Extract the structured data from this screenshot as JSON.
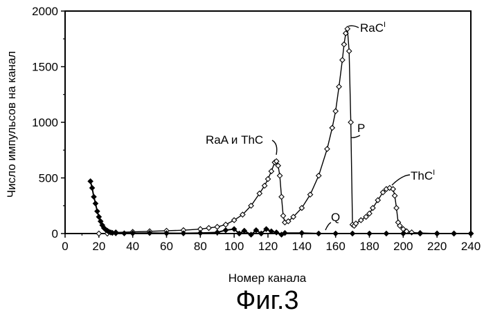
{
  "chart_data": {
    "type": "scatter",
    "xlabel": "Номер канала",
    "ylabel": "Число импульсов на канал",
    "caption": "Фиг.3",
    "xlim": [
      0,
      240
    ],
    "ylim": [
      0,
      2000
    ],
    "xticks": [
      "0",
      "20",
      "40",
      "60",
      "80",
      "100",
      "120",
      "140",
      "160",
      "180",
      "200",
      "220",
      "240"
    ],
    "yticks": [
      "0",
      "500",
      "1000",
      "1500",
      "2000"
    ],
    "grid": false,
    "annotations": {
      "raa_thc": "RaA и ThC",
      "rac": "RaC",
      "rac_sup": "I",
      "p": "P",
      "thc1": "ThC",
      "thc1_sup": "I",
      "q": "Q"
    },
    "series": [
      {
        "label_ref": "P",
        "marker": "open-diamond",
        "x": [
          20,
          25,
          30,
          40,
          50,
          60,
          70,
          80,
          85,
          90,
          95,
          100,
          105,
          110,
          115,
          118,
          120,
          122,
          124,
          125,
          126,
          127,
          128,
          129,
          130,
          132,
          135,
          140,
          145,
          150,
          155,
          158,
          160,
          162,
          164,
          165,
          166,
          167,
          168,
          169,
          170,
          171,
          172,
          175,
          178,
          180,
          182,
          185,
          188,
          190,
          192,
          194,
          195,
          196,
          197,
          198,
          200,
          202,
          205,
          210,
          220,
          230,
          240
        ],
        "y": [
          0,
          0,
          10,
          15,
          20,
          25,
          30,
          40,
          50,
          60,
          80,
          120,
          170,
          250,
          360,
          430,
          490,
          560,
          640,
          650,
          610,
          520,
          330,
          160,
          100,
          110,
          150,
          230,
          350,
          520,
          760,
          950,
          1100,
          1320,
          1560,
          1700,
          1800,
          1840,
          1640,
          1000,
          80,
          70,
          90,
          120,
          150,
          180,
          230,
          300,
          370,
          400,
          410,
          400,
          340,
          230,
          100,
          70,
          40,
          20,
          10,
          5,
          0,
          0,
          0
        ]
      },
      {
        "label_ref": "Q",
        "marker": "filled-diamond",
        "x": [
          15,
          16,
          17,
          18,
          19,
          20,
          21,
          22,
          23,
          24,
          25,
          26,
          27,
          28,
          30,
          35,
          40,
          50,
          60,
          70,
          80,
          90,
          95,
          100,
          103,
          106,
          110,
          113,
          116,
          119,
          122,
          125,
          128,
          130,
          140,
          150,
          160,
          170,
          180,
          190,
          200,
          210,
          220,
          230,
          240
        ],
        "y": [
          470,
          410,
          330,
          270,
          200,
          150,
          110,
          75,
          50,
          35,
          25,
          15,
          10,
          6,
          3,
          2,
          3,
          5,
          3,
          2,
          5,
          10,
          30,
          40,
          0,
          25,
          -10,
          30,
          0,
          40,
          20,
          10,
          -10,
          5,
          5,
          0,
          0,
          0,
          0,
          0,
          0,
          0,
          0,
          0,
          0
        ]
      }
    ]
  }
}
